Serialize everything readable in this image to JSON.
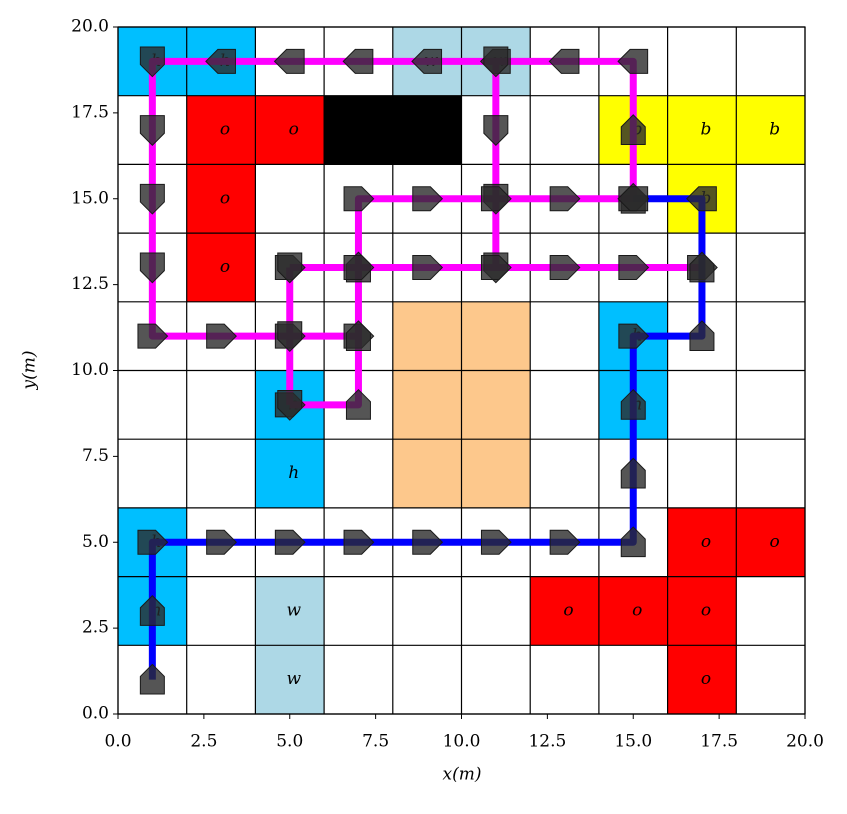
{
  "chart_data": {
    "type": "gridworld",
    "xlabel": "x(m)",
    "ylabel": "y(m)",
    "xlim": [
      0,
      20
    ],
    "ylim": [
      0,
      20
    ],
    "xticks": [
      {
        "value": 0,
        "label": "0.0"
      },
      2.5,
      {
        "value": 5,
        "label": "5.0"
      },
      7.5,
      {
        "value": 10,
        "label": "10.0"
      },
      12.5,
      {
        "value": 15,
        "label": "15.0"
      },
      17.5,
      {
        "value": 20,
        "label": "20.0"
      }
    ],
    "yticks": [
      {
        "value": 0,
        "label": "0.0"
      },
      2.5,
      {
        "value": 5,
        "label": "5.0"
      },
      7.5,
      {
        "value": 10,
        "label": "10.0"
      },
      12.5,
      {
        "value": 15,
        "label": "15.0"
      },
      17.5,
      {
        "value": 20,
        "label": "20.0"
      }
    ],
    "grid_lines": [
      0,
      2,
      4,
      6,
      8,
      10,
      12,
      14,
      16,
      18,
      20
    ],
    "cells": [
      {
        "x": [
          0,
          2
        ],
        "y": [
          18,
          20
        ],
        "color": "#00bfff",
        "label": "h"
      },
      {
        "x": [
          2,
          4
        ],
        "y": [
          18,
          20
        ],
        "color": "#00bfff",
        "label": "h"
      },
      {
        "x": [
          8,
          10
        ],
        "y": [
          18,
          20
        ],
        "color": "#add8e6",
        "label": "w"
      },
      {
        "x": [
          10,
          12
        ],
        "y": [
          18,
          20
        ],
        "color": "#add8e6",
        "label": "w"
      },
      {
        "x": [
          2,
          4
        ],
        "y": [
          16,
          18
        ],
        "color": "#ff0000",
        "label": "o"
      },
      {
        "x": [
          4,
          6
        ],
        "y": [
          16,
          18
        ],
        "color": "#ff0000",
        "label": "o"
      },
      {
        "x": [
          6,
          8
        ],
        "y": [
          16,
          18
        ],
        "color": "#000000"
      },
      {
        "x": [
          8,
          10
        ],
        "y": [
          16,
          18
        ],
        "color": "#000000"
      },
      {
        "x": [
          14,
          16
        ],
        "y": [
          16,
          18
        ],
        "color": "#ffff00",
        "label": "b"
      },
      {
        "x": [
          16,
          18
        ],
        "y": [
          16,
          18
        ],
        "color": "#ffff00",
        "label": "b"
      },
      {
        "x": [
          18,
          20
        ],
        "y": [
          16,
          18
        ],
        "color": "#ffff00",
        "label": "b"
      },
      {
        "x": [
          2,
          4
        ],
        "y": [
          14,
          16
        ],
        "color": "#ff0000",
        "label": "o"
      },
      {
        "x": [
          16,
          18
        ],
        "y": [
          14,
          16
        ],
        "color": "#ffff00",
        "label": "b"
      },
      {
        "x": [
          2,
          4
        ],
        "y": [
          12,
          14
        ],
        "color": "#ff0000",
        "label": "o"
      },
      {
        "x": [
          8,
          10
        ],
        "y": [
          10,
          12
        ],
        "color": "#fdc88c"
      },
      {
        "x": [
          10,
          12
        ],
        "y": [
          10,
          12
        ],
        "color": "#fdc88c"
      },
      {
        "x": [
          14,
          16
        ],
        "y": [
          10,
          12
        ],
        "color": "#00bfff",
        "label": "h"
      },
      {
        "x": [
          4,
          6
        ],
        "y": [
          8,
          10
        ],
        "color": "#00bfff",
        "label": "h"
      },
      {
        "x": [
          8,
          10
        ],
        "y": [
          8,
          10
        ],
        "color": "#fdc88c"
      },
      {
        "x": [
          10,
          12
        ],
        "y": [
          8,
          10
        ],
        "color": "#fdc88c"
      },
      {
        "x": [
          14,
          16
        ],
        "y": [
          8,
          10
        ],
        "color": "#00bfff",
        "label": "h"
      },
      {
        "x": [
          4,
          6
        ],
        "y": [
          6,
          8
        ],
        "color": "#00bfff",
        "label": "h"
      },
      {
        "x": [
          8,
          10
        ],
        "y": [
          6,
          8
        ],
        "color": "#fdc88c"
      },
      {
        "x": [
          10,
          12
        ],
        "y": [
          6,
          8
        ],
        "color": "#fdc88c"
      },
      {
        "x": [
          0,
          2
        ],
        "y": [
          4,
          6
        ],
        "color": "#00bfff",
        "label": "h"
      },
      {
        "x": [
          16,
          18
        ],
        "y": [
          4,
          6
        ],
        "color": "#ff0000",
        "label": "o"
      },
      {
        "x": [
          18,
          20
        ],
        "y": [
          4,
          6
        ],
        "color": "#ff0000",
        "label": "o"
      },
      {
        "x": [
          0,
          2
        ],
        "y": [
          2,
          4
        ],
        "color": "#00bfff",
        "label": "h"
      },
      {
        "x": [
          4,
          6
        ],
        "y": [
          2,
          4
        ],
        "color": "#add8e6",
        "label": "w"
      },
      {
        "x": [
          12,
          14
        ],
        "y": [
          2,
          4
        ],
        "color": "#ff0000",
        "label": "o"
      },
      {
        "x": [
          14,
          16
        ],
        "y": [
          2,
          4
        ],
        "color": "#ff0000",
        "label": "o"
      },
      {
        "x": [
          16,
          18
        ],
        "y": [
          2,
          4
        ],
        "color": "#ff0000",
        "label": "o"
      },
      {
        "x": [
          4,
          6
        ],
        "y": [
          0,
          2
        ],
        "color": "#add8e6",
        "label": "w"
      },
      {
        "x": [
          16,
          18
        ],
        "y": [
          0,
          2
        ],
        "color": "#ff0000",
        "label": "o"
      }
    ],
    "series": [
      {
        "color": "#ff00ff",
        "x": [
          15,
          15,
          15,
          13,
          11,
          9,
          7,
          5,
          3,
          1,
          1,
          1,
          1,
          1,
          3,
          5,
          7
        ],
        "y": [
          15,
          17,
          19,
          19,
          19,
          19,
          19,
          19,
          19,
          19,
          17,
          15,
          13,
          11,
          11,
          11,
          11
        ]
      },
      {
        "color": "#ff00ff",
        "x": [
          11,
          11,
          11,
          11
        ],
        "y": [
          19,
          17,
          15,
          13
        ]
      },
      {
        "color": "#ff00ff",
        "x": [
          5,
          7,
          7,
          7,
          7,
          9,
          11,
          13,
          15
        ],
        "y": [
          9,
          9,
          11,
          13,
          15,
          15,
          15,
          15,
          15
        ]
      },
      {
        "color": "#ff00ff",
        "x": [
          5,
          7,
          9,
          11,
          13,
          15,
          17
        ],
        "y": [
          13,
          13,
          13,
          13,
          13,
          13,
          13
        ]
      },
      {
        "color": "#ff00ff",
        "x": [
          5,
          5,
          5
        ],
        "y": [
          13,
          11,
          9
        ]
      },
      {
        "color": "#0000ff",
        "x": [
          1,
          1,
          1,
          3,
          5,
          7,
          9,
          11,
          13,
          15,
          15,
          15,
          15,
          17,
          17,
          17,
          15
        ],
        "y": [
          1,
          3,
          5,
          5,
          5,
          5,
          5,
          5,
          5,
          5,
          7,
          9,
          11,
          11,
          13,
          15,
          15
        ]
      }
    ]
  }
}
